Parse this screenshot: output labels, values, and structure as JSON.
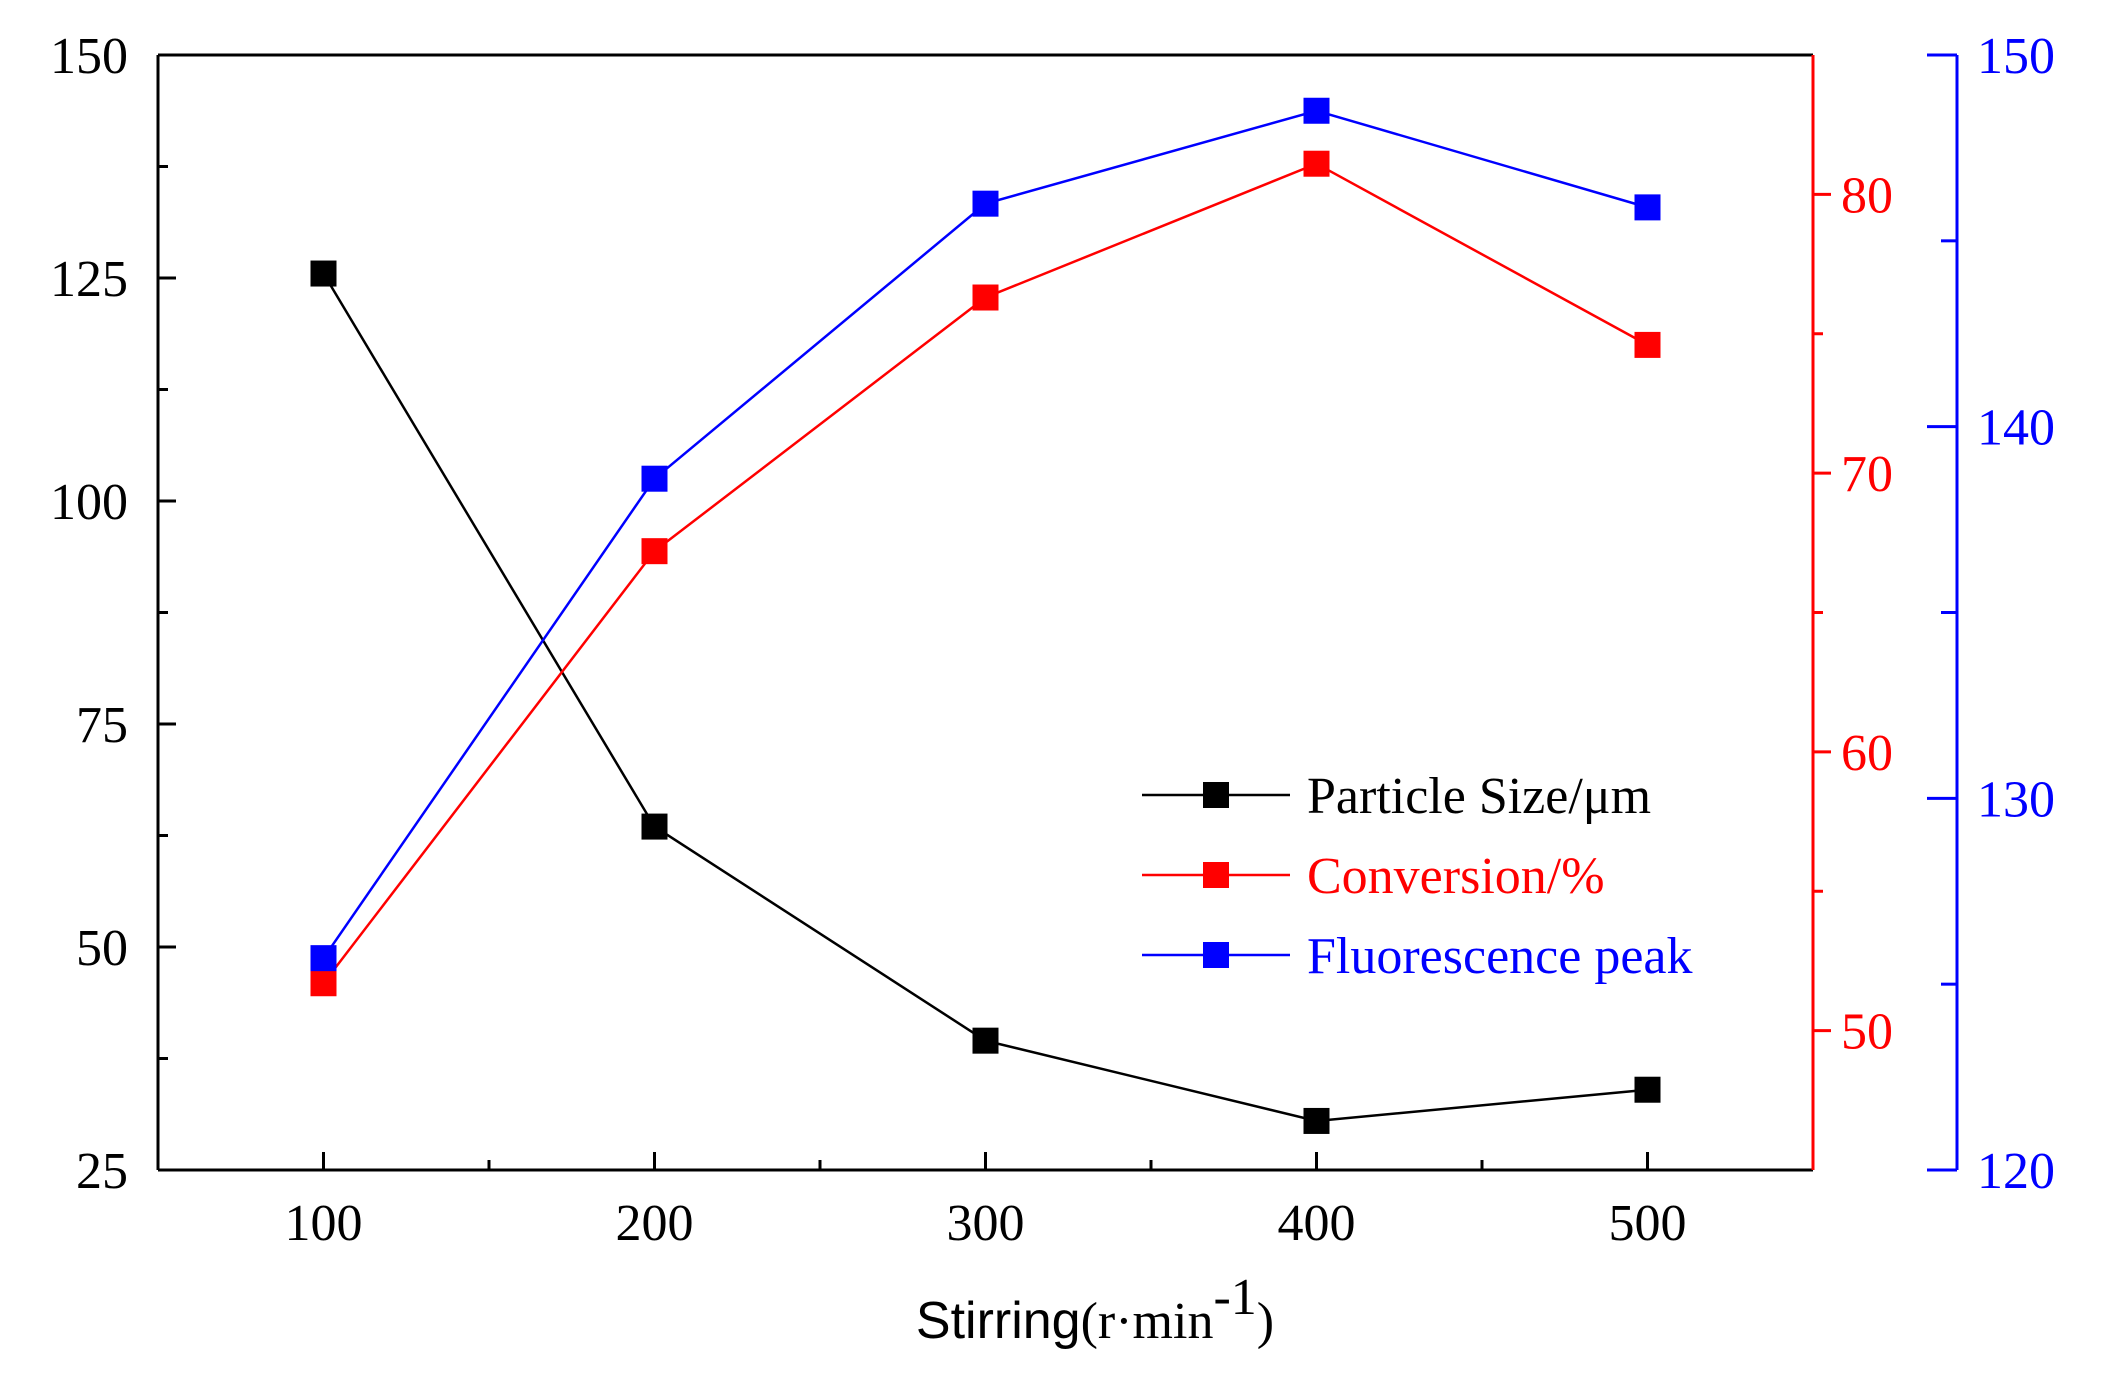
{
  "chart_data": {
    "type": "line",
    "title": "",
    "xlabel": {
      "main": "Stirring",
      "unit_prefix": "(r·min",
      "unit_exponent": "-1",
      "unit_suffix": ")"
    },
    "x": [
      100,
      200,
      300,
      400,
      500
    ],
    "xlim": [
      50,
      550
    ],
    "x_ticks": [
      "100",
      "200",
      "300",
      "400",
      "500"
    ],
    "axes": {
      "left": {
        "ylim": [
          25,
          150
        ],
        "ticks": [
          "25",
          "50",
          "75",
          "100",
          "125",
          "150"
        ],
        "color": "#000000"
      },
      "right": {
        "ylim": [
          45,
          85
        ],
        "ticks": [
          "50",
          "60",
          "70",
          "80"
        ],
        "color": "#ff0000"
      },
      "far_right": {
        "ylim": [
          120,
          150
        ],
        "ticks": [
          "120",
          "130",
          "140",
          "150"
        ],
        "color": "#0000ff"
      }
    },
    "series": [
      {
        "name": "Particle Size/μm",
        "axis": "left",
        "color": "#000000",
        "values": [
          125.5,
          63.5,
          39.5,
          30.5,
          34.0
        ]
      },
      {
        "name": "Conversion/%",
        "axis": "right",
        "color": "#ff0000",
        "values": [
          51.7,
          67.2,
          76.3,
          81.1,
          74.6
        ]
      },
      {
        "name": "Fluorescence peak",
        "axis": "far_right",
        "color": "#0000ff",
        "values": [
          125.7,
          138.6,
          146.0,
          148.5,
          145.9
        ]
      }
    ],
    "legend": {
      "placement": "center-right"
    }
  }
}
